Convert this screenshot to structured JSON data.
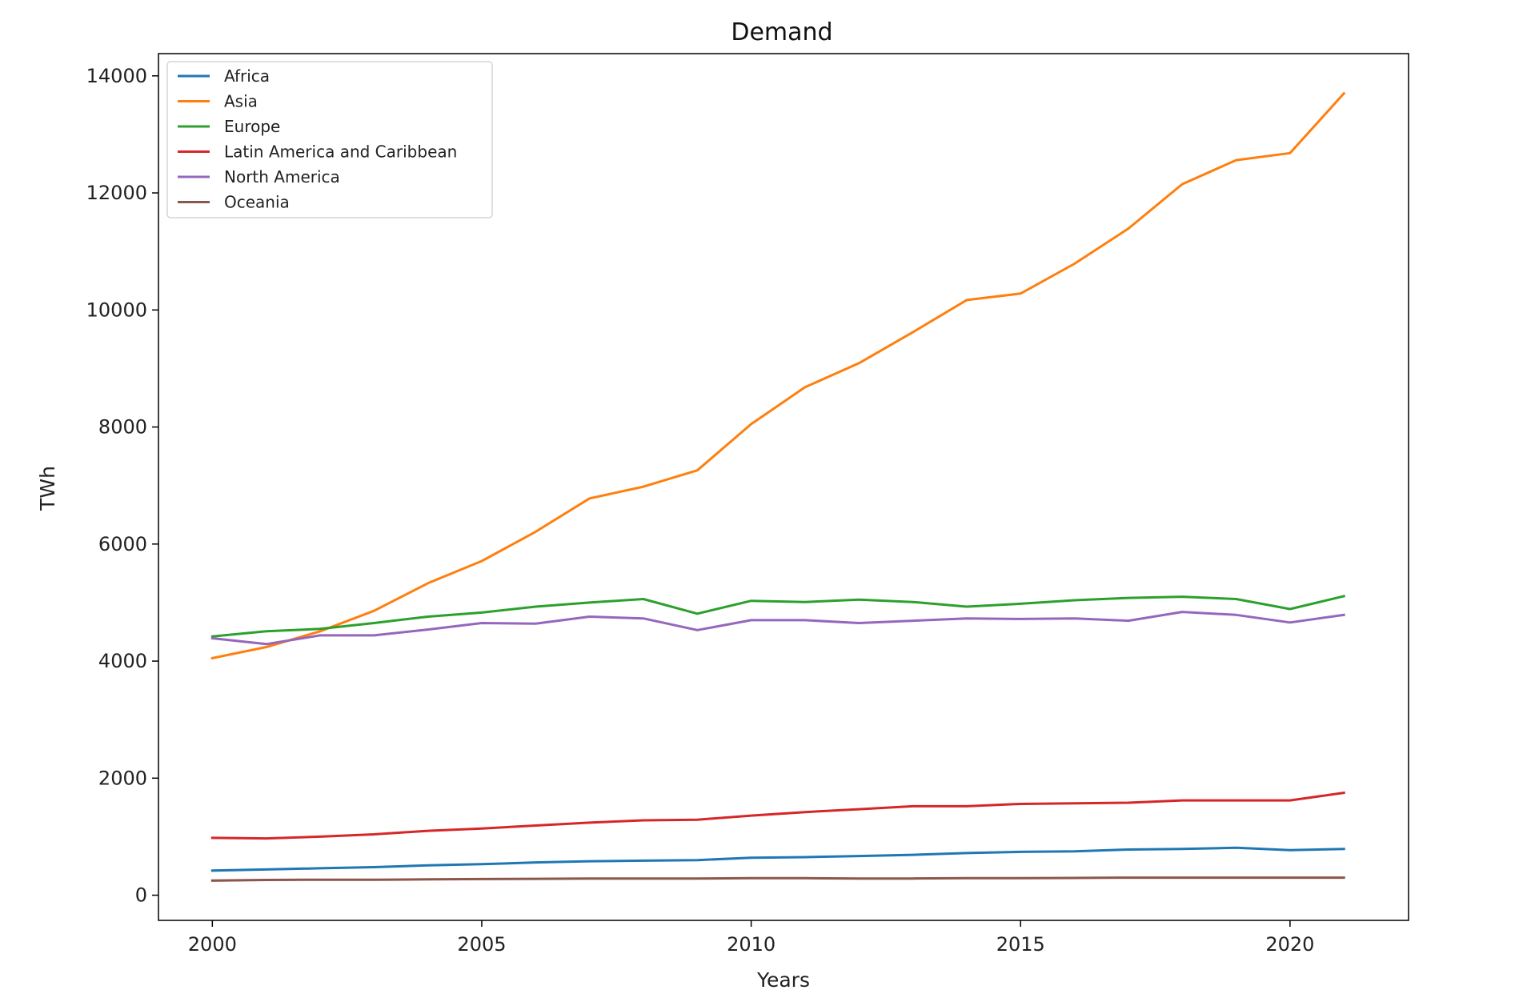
{
  "chart_data": {
    "type": "line",
    "title": "Demand",
    "xlabel": "Years",
    "ylabel": "TWh",
    "x": [
      2000,
      2001,
      2002,
      2003,
      2004,
      2005,
      2006,
      2007,
      2008,
      2009,
      2010,
      2011,
      2012,
      2013,
      2014,
      2015,
      2016,
      2017,
      2018,
      2019,
      2020,
      2021
    ],
    "xlim": [
      1999,
      2022.2
    ],
    "ylim": [
      -430,
      14380
    ],
    "xticks": [
      2000,
      2005,
      2010,
      2015,
      2020
    ],
    "yticks": [
      0,
      2000,
      4000,
      6000,
      8000,
      10000,
      12000,
      14000
    ],
    "grid": false,
    "legend_position": "top-left",
    "series": [
      {
        "name": "Africa",
        "color": "#1f77b4",
        "values": [
          420,
          440,
          460,
          480,
          510,
          530,
          560,
          580,
          590,
          600,
          640,
          650,
          670,
          690,
          720,
          740,
          750,
          780,
          790,
          810,
          770,
          790
        ]
      },
      {
        "name": "Asia",
        "color": "#ff7f0e",
        "values": [
          4050,
          4240,
          4510,
          4860,
          5330,
          5710,
          6210,
          6780,
          6980,
          7260,
          8050,
          8680,
          9090,
          9620,
          10170,
          10280,
          10790,
          11390,
          12150,
          12560,
          12680,
          13700
        ]
      },
      {
        "name": "Europe",
        "color": "#2ca02c",
        "values": [
          4420,
          4510,
          4550,
          4650,
          4760,
          4830,
          4930,
          5000,
          5060,
          4810,
          5030,
          5010,
          5050,
          5010,
          4930,
          4980,
          5040,
          5080,
          5100,
          5060,
          4890,
          5110
        ]
      },
      {
        "name": "Latin America and Caribbean",
        "color": "#d62728",
        "values": [
          980,
          970,
          1000,
          1040,
          1100,
          1140,
          1190,
          1240,
          1280,
          1290,
          1360,
          1420,
          1470,
          1520,
          1520,
          1560,
          1570,
          1580,
          1620,
          1620,
          1620,
          1750
        ]
      },
      {
        "name": "North America",
        "color": "#9467bd",
        "values": [
          4390,
          4290,
          4440,
          4440,
          4540,
          4650,
          4640,
          4760,
          4730,
          4530,
          4700,
          4700,
          4650,
          4690,
          4730,
          4720,
          4730,
          4690,
          4840,
          4790,
          4660,
          4790
        ]
      },
      {
        "name": "Oceania",
        "color": "#8c564b",
        "values": [
          250,
          260,
          265,
          265,
          270,
          275,
          280,
          285,
          285,
          285,
          290,
          290,
          285,
          285,
          290,
          290,
          295,
          300,
          300,
          300,
          300,
          300
        ]
      }
    ]
  }
}
